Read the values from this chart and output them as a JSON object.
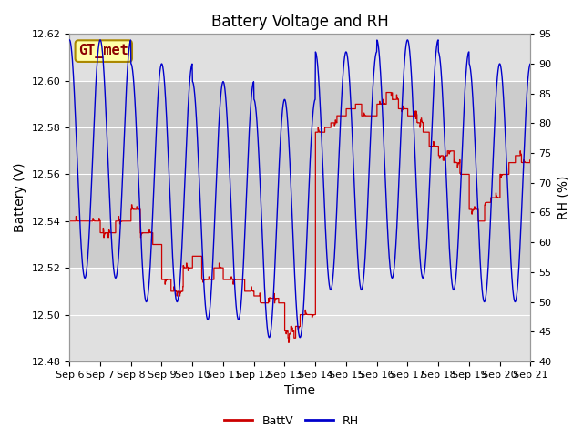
{
  "title": "Battery Voltage and RH",
  "xlabel": "Time",
  "ylabel_left": "Battery (V)",
  "ylabel_right": "RH (%)",
  "watermark": "GT_met",
  "x_tick_labels": [
    "Sep 6",
    "Sep 7",
    "Sep 8",
    "Sep 9",
    "Sep 10",
    "Sep 11",
    "Sep 12",
    "Sep 13",
    "Sep 14",
    "Sep 15",
    "Sep 16",
    "Sep 17",
    "Sep 18",
    "Sep 19",
    "Sep 20",
    "Sep 21"
  ],
  "ylim_left": [
    12.48,
    12.62
  ],
  "ylim_right": [
    40,
    95
  ],
  "yticks_left": [
    12.48,
    12.5,
    12.52,
    12.54,
    12.56,
    12.58,
    12.6,
    12.62
  ],
  "yticks_right": [
    40,
    45,
    50,
    55,
    60,
    65,
    70,
    75,
    80,
    85,
    90,
    95
  ],
  "batt_color": "#cc0000",
  "rh_color": "#0000cc",
  "legend_labels": [
    "BattV",
    "RH"
  ],
  "bg_color": "#ffffff",
  "plot_bg_color": "#e0e0e0",
  "band_light_color": "#cccccc",
  "grid_color": "#ffffff",
  "title_fontsize": 12,
  "label_fontsize": 10,
  "tick_fontsize": 8,
  "watermark_fontsize": 11
}
